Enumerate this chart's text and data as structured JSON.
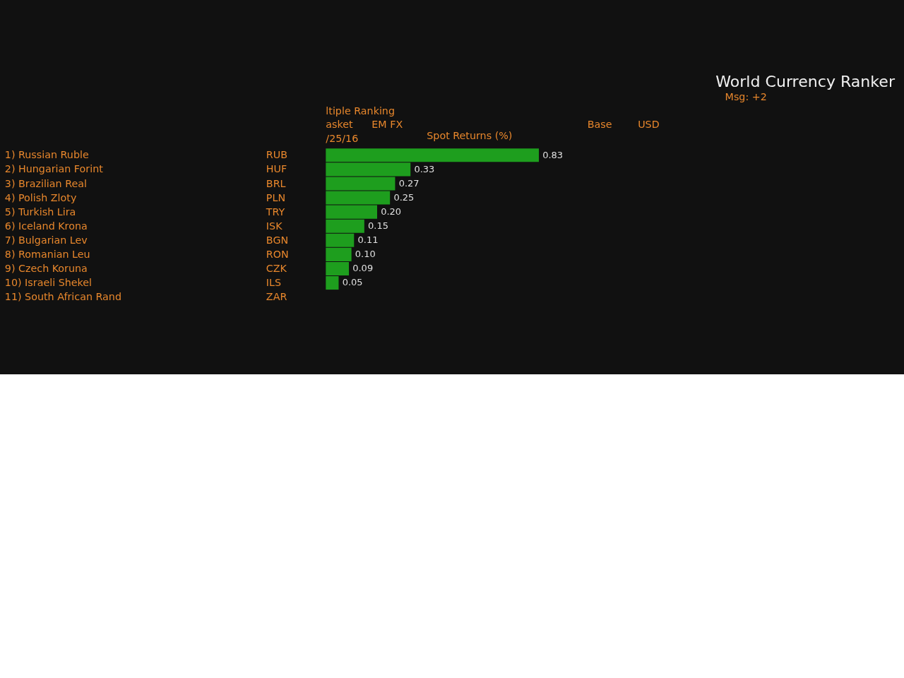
{
  "chart_data": {
    "type": "bar",
    "orientation": "horizontal",
    "title": "World Currency Ranker",
    "subtitle": "Spot Returns (%)",
    "categories": [
      "1) Russian Ruble",
      "2) Hungarian Forint",
      "3) Brazilian Real",
      "4) Polish Zloty",
      "5) Turkish Lira",
      "6) Iceland Krona",
      "7) Bulgarian Lev",
      "8) Romanian Leu",
      "9) Czech Koruna",
      "10) Israeli Shekel",
      "11) South African Rand"
    ],
    "values": [
      0.83,
      0.33,
      0.27,
      0.25,
      0.2,
      0.15,
      0.11,
      0.1,
      0.09,
      0.05,
      null
    ],
    "value_labels": [
      "0.83",
      "0.33",
      "0.27",
      "0.25",
      "0.20",
      "0.15",
      "0.11",
      "0.10",
      "0.09",
      "0.05",
      null
    ],
    "color": "#1e9e1e",
    "annotations": [
      "RUB",
      "HUF",
      "BRL",
      "PLN",
      "TRY",
      "ISK",
      "BGN",
      "RON",
      "CZK",
      "ILS",
      "ZAR",
      "Msg: +2",
      "ltiple Ranking",
      "asket",
      "EM FX",
      "Base",
      "USD",
      "/25/16"
    ]
  }
}
